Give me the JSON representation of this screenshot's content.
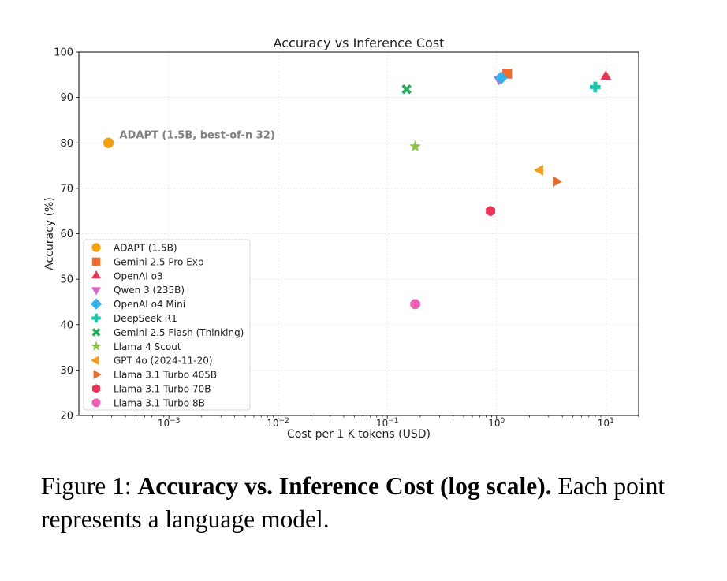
{
  "chart_data": {
    "type": "scatter",
    "title": "Accuracy vs Inference Cost",
    "xlabel": "Cost per 1 K tokens (USD)",
    "ylabel": "Accuracy (%)",
    "xscale": "log",
    "xlim": [
      0.00015,
      20
    ],
    "ylim": [
      20,
      100
    ],
    "xticks": [
      {
        "value": 0.001,
        "base": "10",
        "exp": "−3"
      },
      {
        "value": 0.01,
        "base": "10",
        "exp": "−2"
      },
      {
        "value": 0.1,
        "base": "10",
        "exp": "−1"
      },
      {
        "value": 1,
        "base": "10",
        "exp": "0"
      },
      {
        "value": 10,
        "base": "10",
        "exp": "1"
      }
    ],
    "yticks": [
      20,
      30,
      40,
      50,
      60,
      70,
      80,
      90,
      100
    ],
    "grid": true,
    "legend_position": "lower-left",
    "annotations": [
      {
        "text": "ADAPT (1.5B, best-of-n 32)",
        "x": 0.00028,
        "y": 80
      }
    ],
    "series": [
      {
        "name": "ADAPT (1.5B)",
        "marker": "circle",
        "color": "#f5a10f",
        "x": 0.00028,
        "y": 80
      },
      {
        "name": "Gemini 2.5 Pro Exp",
        "marker": "square",
        "color": "#f26b2a",
        "x": 1.25,
        "y": 95.2
      },
      {
        "name": "OpenAI o3",
        "marker": "triangle-up",
        "color": "#ee3355",
        "x": 10,
        "y": 94.6
      },
      {
        "name": "Qwen 3 (235B)",
        "marker": "triangle-down",
        "color": "#e064c8",
        "x": 1.05,
        "y": 94.0
      },
      {
        "name": "OpenAI o4 Mini",
        "marker": "diamond",
        "color": "#33b2ee",
        "x": 1.1,
        "y": 94.3
      },
      {
        "name": "DeepSeek R1",
        "marker": "plus",
        "color": "#18c4aa",
        "x": 8,
        "y": 92.3
      },
      {
        "name": "Gemini 2.5 Flash (Thinking)",
        "marker": "x",
        "color": "#22aa55",
        "x": 0.15,
        "y": 91.8
      },
      {
        "name": "Llama 4 Scout",
        "marker": "star",
        "color": "#8cc63f",
        "x": 0.18,
        "y": 79.2
      },
      {
        "name": "GPT 4o (2024-11-20)",
        "marker": "triangle-left",
        "color": "#f59c1a",
        "x": 2.5,
        "y": 74
      },
      {
        "name": "Llama 3.1 Turbo 405B",
        "marker": "triangle-right",
        "color": "#ec6a28",
        "x": 3.5,
        "y": 71.5
      },
      {
        "name": "Llama 3.1 Turbo 70B",
        "marker": "hexagon",
        "color": "#ee3355",
        "x": 0.88,
        "y": 65
      },
      {
        "name": "Llama 3.1 Turbo 8B",
        "marker": "octagon",
        "color": "#ee5fb4",
        "x": 0.18,
        "y": 44.5
      }
    ]
  },
  "caption": {
    "prefix": "Figure 1: ",
    "bold": "Accuracy vs.  Inference Cost (log scale).",
    "rest": " Each point represents a language model."
  }
}
